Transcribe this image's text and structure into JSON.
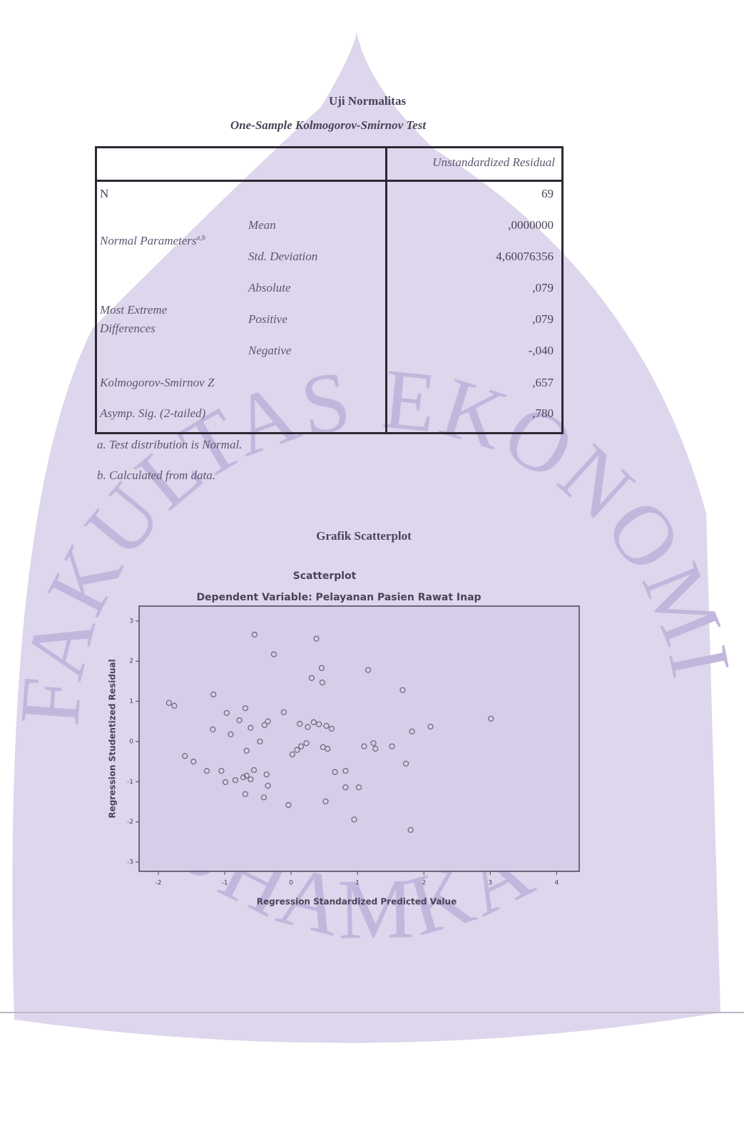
{
  "header": {
    "title": "Uji Normalitas",
    "subtitle": "One-Sample Kolmogorov-Smirnov Test"
  },
  "table": {
    "column_header": "Unstandardized Residual",
    "rows": [
      {
        "label": "N",
        "value": "69"
      },
      {
        "label": "Normal Parameters",
        "note": "a,b",
        "items": [
          {
            "label": "Mean",
            "value": ",0000000"
          },
          {
            "label": "Std. Deviation",
            "value": "4,60076356"
          }
        ]
      },
      {
        "label": "Most Extreme Differences",
        "items": [
          {
            "label": "Absolute",
            "value": ",079"
          },
          {
            "label": "Positive",
            "value": ",079"
          },
          {
            "label": "Negative",
            "value": "-,040"
          }
        ]
      },
      {
        "label": "Kolmogorov-Smirnov Z",
        "value": ",657"
      },
      {
        "label": "Asymp. Sig. (2-tailed)",
        "value": ",780"
      }
    ]
  },
  "notes": [
    "a. Test distribution is Normal.",
    "b. Calculated from data."
  ],
  "figure_caption": "Grafik Scatterplot",
  "watermark": {
    "arc_text": "FAKULTAS EKONOMI DAN BISNIS",
    "bottom_text": "UHAMKA"
  },
  "chart_data": {
    "type": "scatter",
    "title": "Scatterplot",
    "subtitle": "Dependent Variable: Pelayanan Pasien Rawat Inap",
    "x_label": "Regression Standardized Predicted Value",
    "y_label": "Regression Studentized Residual",
    "x": [
      -0.55,
      0.38,
      -0.26,
      0.46,
      1.16,
      0.31,
      0.47,
      1.68,
      -1.17,
      -1.84,
      -1.76,
      -0.69,
      -0.11,
      -0.97,
      3.01,
      -0.78,
      -0.35,
      -0.4,
      0.13,
      0.34,
      0.42,
      0.53,
      0.61,
      0.25,
      -1.18,
      -0.61,
      2.1,
      1.82,
      -0.91,
      -0.47,
      0.23,
      0.15,
      0.09,
      0.02,
      -0.67,
      0.48,
      0.55,
      1.1,
      1.24,
      1.27,
      1.52,
      -1.6,
      -1.47,
      1.73,
      -1.27,
      -1.05,
      -0.56,
      -0.37,
      -0.72,
      -0.61,
      -0.67,
      -0.99,
      -0.84,
      0.66,
      0.82,
      -0.35,
      -0.69,
      0.82,
      1.02,
      -0.41,
      0.52,
      -0.04,
      0.95,
      1.8
    ],
    "values": [
      2.66,
      2.56,
      2.17,
      1.83,
      1.78,
      1.58,
      1.47,
      1.28,
      1.17,
      0.96,
      0.89,
      0.83,
      0.73,
      0.71,
      0.57,
      0.53,
      0.5,
      0.41,
      0.44,
      0.48,
      0.43,
      0.39,
      0.32,
      0.36,
      0.3,
      0.34,
      0.37,
      0.25,
      0.18,
      0.0,
      -0.04,
      -0.12,
      -0.21,
      -0.32,
      -0.23,
      -0.14,
      -0.18,
      -0.12,
      -0.04,
      -0.18,
      -0.12,
      -0.36,
      -0.5,
      -0.55,
      -0.73,
      -0.73,
      -0.71,
      -0.82,
      -0.89,
      -0.94,
      -0.85,
      -1.01,
      -0.96,
      -0.76,
      -0.73,
      -1.1,
      -1.31,
      -1.14,
      -1.14,
      -1.39,
      -1.49,
      -1.58,
      -1.94,
      -2.2
    ],
    "color": "#6b6478",
    "xlim": [
      -2.29,
      4.34
    ],
    "ylim": [
      -3.23,
      3.37
    ],
    "xticks": [
      -2,
      -1,
      0,
      1,
      2,
      3,
      4
    ],
    "yticks": [
      -3,
      -2,
      -1,
      0,
      1,
      2,
      3
    ]
  }
}
